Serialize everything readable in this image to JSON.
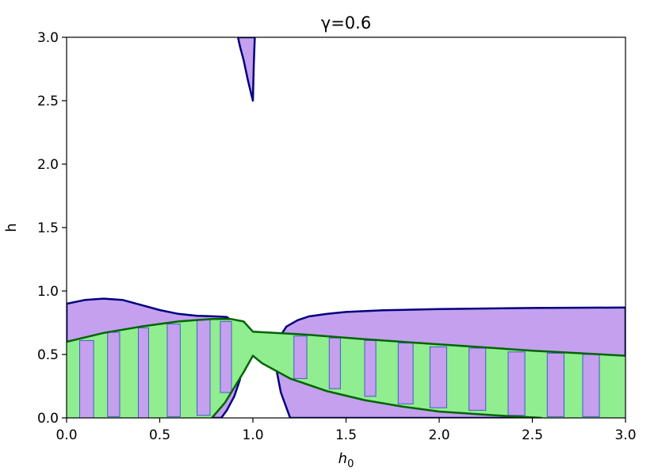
{
  "chart_data": {
    "type": "area",
    "title": "γ=0.6",
    "xlabel": "h",
    "xlabel_subscript": "0",
    "ylabel": "h",
    "xlim": [
      0.0,
      3.0
    ],
    "ylim": [
      0.0,
      3.0
    ],
    "xticks": [
      "0.0",
      "0.5",
      "1.0",
      "1.5",
      "2.0",
      "2.5",
      "3.0"
    ],
    "yticks": [
      "0.0",
      "0.5",
      "1.0",
      "1.5",
      "2.0",
      "2.5",
      "3.0"
    ],
    "grid": false,
    "colors": {
      "purple_fill": "#c4a0ee",
      "purple_edge": "#00007f",
      "green_fill": "#90ee90",
      "green_edge": "#006400",
      "bar_edge": "#4060c0"
    },
    "regions": [
      {
        "color": "purple",
        "points": [
          [
            0.0,
            0.9
          ],
          [
            0.1,
            0.93
          ],
          [
            0.2,
            0.94
          ],
          [
            0.3,
            0.93
          ],
          [
            0.4,
            0.89
          ],
          [
            0.5,
            0.85
          ],
          [
            0.6,
            0.82
          ],
          [
            0.7,
            0.805
          ],
          [
            0.8,
            0.8
          ],
          [
            0.86,
            0.795
          ],
          [
            0.9,
            0.75
          ],
          [
            0.93,
            0.6
          ],
          [
            0.94,
            0.45
          ],
          [
            0.93,
            0.3
          ],
          [
            0.9,
            0.17
          ],
          [
            0.86,
            0.06
          ],
          [
            0.83,
            0.0
          ],
          [
            0.0,
            0.0
          ]
        ]
      },
      {
        "color": "purple",
        "points": [
          [
            0.92,
            3.0
          ],
          [
            1.01,
            3.0
          ],
          [
            1.005,
            2.8
          ],
          [
            1.0,
            2.5
          ],
          [
            0.975,
            2.65
          ],
          [
            0.95,
            2.82
          ],
          [
            0.93,
            2.93
          ]
        ]
      },
      {
        "color": "purple",
        "points": [
          [
            3.0,
            0.87
          ],
          [
            2.5,
            0.866
          ],
          [
            2.0,
            0.858
          ],
          [
            1.7,
            0.848
          ],
          [
            1.5,
            0.835
          ],
          [
            1.4,
            0.82
          ],
          [
            1.3,
            0.8
          ],
          [
            1.24,
            0.77
          ],
          [
            1.18,
            0.72
          ],
          [
            1.14,
            0.63
          ],
          [
            1.12,
            0.5
          ],
          [
            1.13,
            0.35
          ],
          [
            1.15,
            0.2
          ],
          [
            1.18,
            0.08
          ],
          [
            1.2,
            0.0
          ],
          [
            3.0,
            0.0
          ]
        ]
      },
      {
        "color": "green",
        "points": [
          [
            0.0,
            0.6
          ],
          [
            0.2,
            0.67
          ],
          [
            0.4,
            0.72
          ],
          [
            0.6,
            0.76
          ],
          [
            0.78,
            0.78
          ],
          [
            0.88,
            0.78
          ],
          [
            0.95,
            0.76
          ],
          [
            1.0,
            0.68
          ],
          [
            1.3,
            0.655
          ],
          [
            1.6,
            0.62
          ],
          [
            2.0,
            0.58
          ],
          [
            2.5,
            0.53
          ],
          [
            3.0,
            0.49
          ],
          [
            3.0,
            0.0
          ],
          [
            2.55,
            0.0
          ],
          [
            2.3,
            0.02
          ],
          [
            2.0,
            0.05
          ],
          [
            1.8,
            0.09
          ],
          [
            1.6,
            0.14
          ],
          [
            1.4,
            0.21
          ],
          [
            1.2,
            0.31
          ],
          [
            1.05,
            0.43
          ],
          [
            1.0,
            0.49
          ],
          [
            0.95,
            0.36
          ],
          [
            0.9,
            0.24
          ],
          [
            0.85,
            0.12
          ],
          [
            0.78,
            0.0
          ],
          [
            0.0,
            0.0
          ]
        ]
      }
    ],
    "green_boundaries": [
      [
        [
          0.0,
          0.6
        ],
        [
          0.2,
          0.67
        ],
        [
          0.4,
          0.72
        ],
        [
          0.6,
          0.76
        ],
        [
          0.78,
          0.78
        ],
        [
          0.88,
          0.78
        ],
        [
          0.95,
          0.76
        ],
        [
          1.0,
          0.68
        ],
        [
          1.3,
          0.655
        ],
        [
          1.6,
          0.62
        ],
        [
          2.0,
          0.58
        ],
        [
          2.5,
          0.53
        ],
        [
          3.0,
          0.49
        ]
      ],
      [
        [
          2.55,
          0.0
        ],
        [
          2.3,
          0.02
        ],
        [
          2.0,
          0.05
        ],
        [
          1.8,
          0.09
        ],
        [
          1.6,
          0.14
        ],
        [
          1.4,
          0.21
        ],
        [
          1.2,
          0.31
        ],
        [
          1.05,
          0.43
        ],
        [
          1.0,
          0.49
        ],
        [
          0.95,
          0.36
        ],
        [
          0.9,
          0.24
        ],
        [
          0.85,
          0.12
        ],
        [
          0.78,
          0.0
        ]
      ]
    ],
    "bars": [
      {
        "x0": 0.07,
        "x1": 0.145,
        "y0": 0.0,
        "y1": 0.61
      },
      {
        "x0": 0.22,
        "x1": 0.285,
        "y0": 0.01,
        "y1": 0.675
      },
      {
        "x0": 0.385,
        "x1": 0.44,
        "y0": 0.0,
        "y1": 0.71
      },
      {
        "x0": 0.54,
        "x1": 0.61,
        "y0": 0.01,
        "y1": 0.74
      },
      {
        "x0": 0.7,
        "x1": 0.77,
        "y0": 0.02,
        "y1": 0.775
      },
      {
        "x0": 0.825,
        "x1": 0.885,
        "y0": 0.2,
        "y1": 0.76
      },
      {
        "x0": 1.22,
        "x1": 1.29,
        "y0": 0.31,
        "y1": 0.645
      },
      {
        "x0": 1.41,
        "x1": 1.47,
        "y0": 0.23,
        "y1": 0.63
      },
      {
        "x0": 1.6,
        "x1": 1.66,
        "y0": 0.17,
        "y1": 0.61
      },
      {
        "x0": 1.78,
        "x1": 1.86,
        "y0": 0.11,
        "y1": 0.59
      },
      {
        "x0": 1.95,
        "x1": 2.04,
        "y0": 0.08,
        "y1": 0.56
      },
      {
        "x0": 2.16,
        "x1": 2.25,
        "y0": 0.06,
        "y1": 0.55
      },
      {
        "x0": 2.37,
        "x1": 2.46,
        "y0": 0.02,
        "y1": 0.52
      },
      {
        "x0": 2.58,
        "x1": 2.67,
        "y0": 0.01,
        "y1": 0.51
      },
      {
        "x0": 2.77,
        "x1": 2.86,
        "y0": 0.01,
        "y1": 0.5
      }
    ]
  }
}
